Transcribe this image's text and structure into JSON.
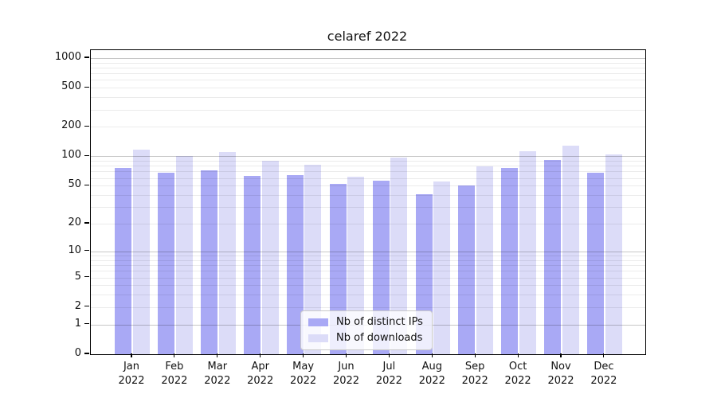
{
  "title": "celaref 2022",
  "legend": {
    "items": [
      {
        "label": "Nb of distinct IPs",
        "color": "#a9a9f5"
      },
      {
        "label": "Nb of downloads",
        "color": "#dcdcf8"
      }
    ]
  },
  "chart_data": {
    "type": "bar",
    "title": "celaref 2022",
    "categories": [
      "Jan",
      "Feb",
      "Mar",
      "Apr",
      "May",
      "Jun",
      "Jul",
      "Aug",
      "Sep",
      "Oct",
      "Nov",
      "Dec"
    ],
    "category_year": "2022",
    "series": [
      {
        "name": "Nb of distinct IPs",
        "color": "#a9a9f5",
        "values": [
          76,
          68,
          72,
          63,
          64,
          52,
          56,
          41,
          50,
          76,
          92,
          68
        ]
      },
      {
        "name": "Nb of downloads",
        "color": "#dcdcf8",
        "values": [
          118,
          101,
          111,
          90,
          82,
          62,
          98,
          55,
          79,
          114,
          128,
          104
        ]
      }
    ],
    "xlabel": "",
    "ylabel": "",
    "yscale": "log10(value+1)",
    "yticks": [
      0,
      1,
      2,
      5,
      10,
      20,
      50,
      100,
      200,
      500,
      1000
    ],
    "major_gridlines": [
      1,
      10,
      100,
      1000
    ],
    "minor_gridlines": [
      3,
      4,
      6,
      7,
      8,
      9,
      30,
      40,
      60,
      70,
      80,
      90,
      300,
      400,
      600,
      700,
      800,
      900
    ],
    "ylim": [
      0,
      1150
    ],
    "grid": true,
    "legend_position": "lower center (inside plot)"
  }
}
